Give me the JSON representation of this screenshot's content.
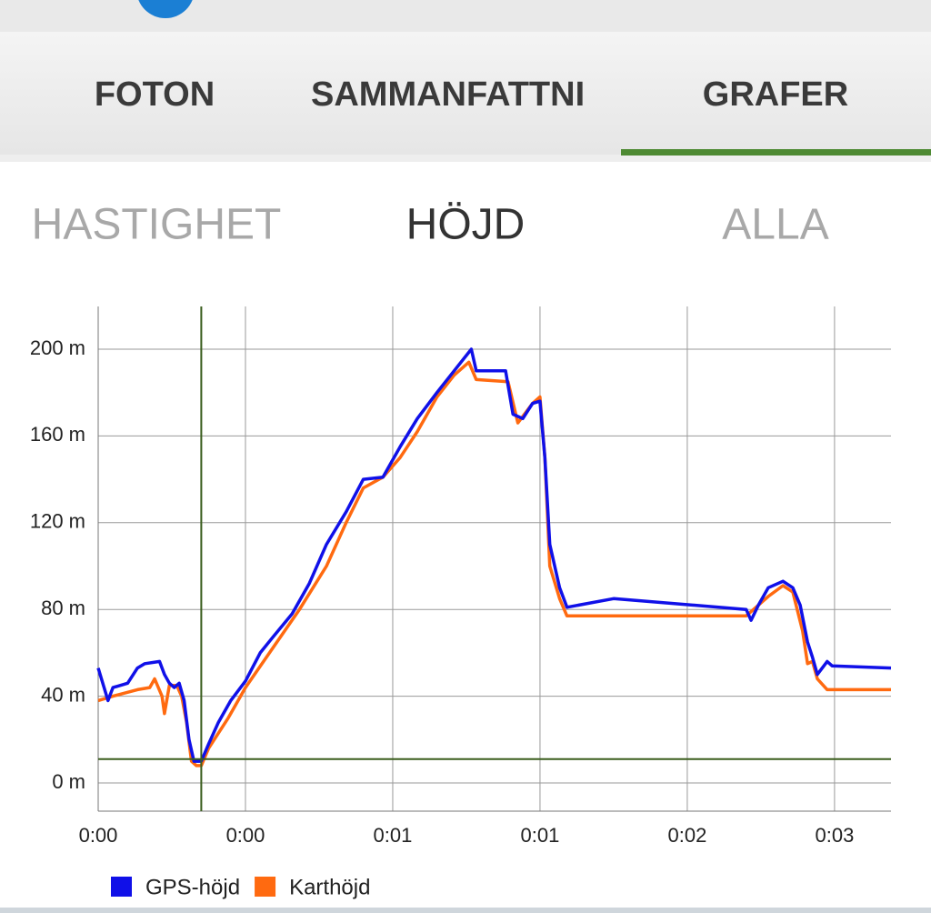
{
  "tabs": [
    "FOTON",
    "SAMMANFATTNI",
    "GRAFER"
  ],
  "subtabs": [
    "HASTIGHET",
    "HÖJD",
    "ALLA"
  ],
  "chart_data": {
    "type": "line",
    "xlim": [
      0,
      3.23
    ],
    "ylim": [
      -13,
      219.7
    ],
    "xticks": [
      {
        "value": 0,
        "label": "0:00"
      },
      {
        "value": 0.6,
        "label": "0:00"
      },
      {
        "value": 1.2,
        "label": "0:01"
      },
      {
        "value": 1.8,
        "label": "0:01"
      },
      {
        "value": 2.4,
        "label": "0:02"
      },
      {
        "value": 3.0,
        "label": "0:03"
      }
    ],
    "yticks": [
      {
        "value": 0,
        "label": "0 m"
      },
      {
        "value": 40,
        "label": "40 m"
      },
      {
        "value": 80,
        "label": "80 m"
      },
      {
        "value": 120,
        "label": "120 m"
      },
      {
        "value": 160,
        "label": "160 m"
      },
      {
        "value": 200,
        "label": "200 m"
      }
    ],
    "grid": true,
    "crosshair": {
      "x": 0.42,
      "y": 11,
      "color": "#3b5e1e"
    },
    "series": [
      {
        "name": "GPS-höjd",
        "color": "#1010e8",
        "x": [
          0,
          0.04,
          0.06,
          0.12,
          0.16,
          0.19,
          0.25,
          0.27,
          0.29,
          0.31,
          0.33,
          0.35,
          0.37,
          0.39,
          0.42,
          0.45,
          0.49,
          0.54,
          0.6,
          0.66,
          0.71,
          0.79,
          0.86,
          0.93,
          1.01,
          1.08,
          1.16,
          1.23,
          1.3,
          1.38,
          1.45,
          1.52,
          1.54,
          1.66,
          1.69,
          1.73,
          1.77,
          1.8,
          1.82,
          1.84,
          1.88,
          1.91,
          2.1,
          2.64,
          2.66,
          2.69,
          2.73,
          2.79,
          2.83,
          2.86,
          2.89,
          2.91,
          2.93,
          2.97,
          2.99,
          3.23
        ],
        "values": [
          53,
          38,
          44,
          46,
          53,
          55,
          56,
          50,
          46,
          44,
          46,
          38,
          20,
          10,
          10,
          18,
          28,
          38,
          47,
          60,
          67,
          78,
          92,
          110,
          125,
          140,
          141,
          155,
          168,
          180,
          190,
          200,
          190,
          190,
          170,
          168,
          175,
          176,
          150,
          110,
          90,
          81,
          85,
          80,
          75,
          82,
          90,
          93,
          90,
          82,
          65,
          58,
          50,
          56,
          54,
          53
        ]
      },
      {
        "name": "Karthöjd",
        "color": "#ff6a10",
        "x": [
          0,
          0.06,
          0.16,
          0.21,
          0.23,
          0.26,
          0.27,
          0.29,
          0.32,
          0.34,
          0.36,
          0.38,
          0.4,
          0.42,
          0.45,
          0.53,
          0.6,
          0.71,
          0.82,
          0.93,
          1.01,
          1.08,
          1.16,
          1.23,
          1.3,
          1.38,
          1.45,
          1.51,
          1.54,
          1.67,
          1.71,
          1.77,
          1.8,
          1.82,
          1.84,
          1.88,
          1.91,
          2.64,
          2.67,
          2.73,
          2.79,
          2.83,
          2.87,
          2.89,
          2.91,
          2.93,
          2.97,
          3.23
        ],
        "values": [
          38,
          40,
          43,
          44,
          48,
          40,
          32,
          45,
          45,
          40,
          28,
          10,
          8,
          8,
          16,
          30,
          44,
          62,
          80,
          100,
          120,
          136,
          141,
          150,
          162,
          178,
          188,
          194,
          186,
          185,
          166,
          175,
          178,
          150,
          100,
          85,
          77,
          77,
          80,
          86,
          91,
          88,
          70,
          55,
          56,
          48,
          43,
          43
        ]
      }
    ]
  }
}
